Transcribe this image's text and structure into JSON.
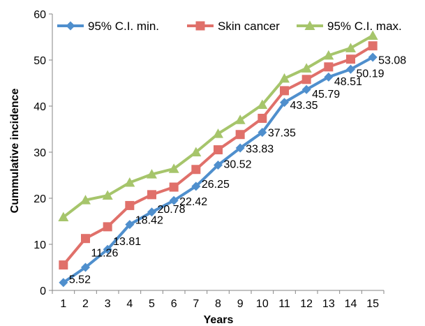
{
  "chart_data": {
    "type": "line",
    "title": "",
    "xlabel": "Years",
    "ylabel": "Cummulative incidence",
    "x": [
      1,
      2,
      3,
      4,
      5,
      6,
      7,
      8,
      9,
      10,
      11,
      12,
      13,
      14,
      15
    ],
    "ylim": [
      0,
      60
    ],
    "yticks": [
      0,
      10,
      20,
      30,
      40,
      50,
      60
    ],
    "grid": false,
    "legend_position": "top",
    "series": [
      {
        "name": "95% C.I. min.",
        "color": "#4f8fcd",
        "marker": "diamond",
        "values": [
          1.7,
          5.0,
          8.9,
          14.3,
          17.0,
          19.5,
          22.6,
          27.2,
          30.9,
          34.3,
          40.8,
          43.6,
          46.3,
          48.0,
          50.6
        ]
      },
      {
        "name": "Skin cancer",
        "color": "#e0706a",
        "marker": "square",
        "values": [
          5.52,
          11.26,
          13.81,
          18.42,
          20.78,
          22.42,
          26.25,
          30.52,
          33.83,
          37.35,
          43.35,
          45.79,
          48.51,
          50.19,
          53.08
        ],
        "data_labels": [
          "5.52",
          "11.26",
          "13.81",
          "18.42",
          "20.78",
          "22.42",
          "26.25",
          "30.52",
          "33.83",
          "37.35",
          "43.35",
          "45.79",
          "48.51",
          "50.19",
          "53.08"
        ]
      },
      {
        "name": "95% C.I. max.",
        "color": "#a6c56b",
        "marker": "triangle",
        "values": [
          15.9,
          19.6,
          20.6,
          23.4,
          25.2,
          26.4,
          30.0,
          34.0,
          37.0,
          40.3,
          46.0,
          48.2,
          51.0,
          52.6,
          55.3
        ]
      }
    ]
  }
}
